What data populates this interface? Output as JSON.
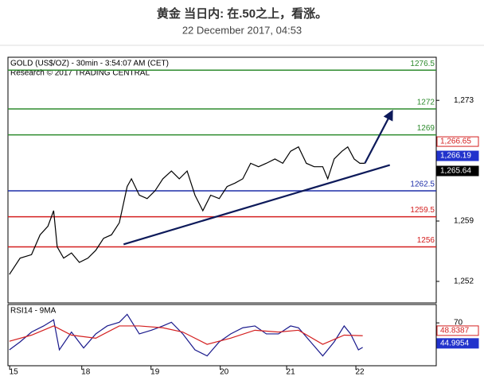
{
  "header": {
    "title": "黄金 当日内: 在.50之上，看涨。",
    "subtitle": "22 December 2017, 04:53"
  },
  "chart_data": [
    {
      "type": "line",
      "title": "GOLD (US$/OZ) - 30min - 3:54:07 AM (CET)",
      "subtitle": "Research © 2017 TRADING CENTRAL",
      "xlim": [
        0,
        6
      ],
      "ylim": [
        1249.5,
        1278.0
      ],
      "yticks": [
        {
          "value": 1273,
          "label": "1,273"
        },
        {
          "value": 1259,
          "label": "1,259"
        },
        {
          "value": 1252,
          "label": "1,252"
        }
      ],
      "series": [
        {
          "color": "#000000",
          "x": [
            0.02,
            0.17,
            0.33,
            0.45,
            0.56,
            0.64,
            0.69,
            0.78,
            0.89,
            1.0,
            1.12,
            1.23,
            1.34,
            1.45,
            1.56,
            1.67,
            1.73,
            1.84,
            1.95,
            2.06,
            2.17,
            2.29,
            2.4,
            2.51,
            2.62,
            2.73,
            2.84,
            2.96,
            3.07,
            3.18,
            3.29,
            3.4,
            3.51,
            3.62,
            3.74,
            3.85,
            3.96,
            4.07,
            4.18,
            4.29,
            4.41,
            4.48,
            4.57,
            4.68,
            4.76,
            4.85,
            4.93,
            5.0
          ],
          "values": [
            1252.8,
            1254.7,
            1255.1,
            1257.4,
            1258.4,
            1260.2,
            1256.0,
            1254.7,
            1255.3,
            1254.2,
            1254.7,
            1255.6,
            1257.0,
            1257.4,
            1258.8,
            1263.0,
            1263.9,
            1262.0,
            1261.6,
            1262.5,
            1263.9,
            1264.8,
            1263.9,
            1264.8,
            1262.0,
            1260.2,
            1262.0,
            1261.6,
            1263.0,
            1263.4,
            1263.9,
            1265.7,
            1265.3,
            1265.7,
            1266.2,
            1265.7,
            1267.1,
            1267.6,
            1265.7,
            1265.3,
            1265.3,
            1263.9,
            1266.2,
            1267.1,
            1267.6,
            1266.2,
            1265.7,
            1265.7
          ]
        }
      ],
      "levels": [
        {
          "value": 1276.5,
          "color": "#2e8b2e"
        },
        {
          "value": 1272,
          "color": "#2e8b2e"
        },
        {
          "value": 1269,
          "color": "#2e8b2e"
        },
        {
          "value": 1262.5,
          "color": "#1f2fa8"
        },
        {
          "value": 1259.5,
          "color": "#d42020"
        },
        {
          "value": 1256,
          "color": "#d42020"
        }
      ],
      "trend_line": {
        "color": "#0d1a5a",
        "x": [
          1.62,
          5.35
        ],
        "values": [
          1256.3,
          1265.5
        ]
      },
      "arrow": {
        "color": "#0d1a5a",
        "x": [
          5.0,
          5.38
        ],
        "values": [
          1265.7,
          1271.7
        ]
      },
      "price_tags": [
        {
          "value": 1266.65,
          "label": "1,266.65",
          "color": "#d42020",
          "fill": "#ffffff"
        },
        {
          "value": 1266.19,
          "label": "1,266.19",
          "color": "#ffffff",
          "fill": "#2233cc"
        },
        {
          "value": 1265.64,
          "label": "1,265.64",
          "color": "#ffffff",
          "fill": "#000000"
        }
      ],
      "xticks": [
        {
          "value": 0.08,
          "label": "15"
        },
        {
          "value": 1.09,
          "label": "18"
        },
        {
          "value": 2.06,
          "label": "19"
        },
        {
          "value": 3.03,
          "label": "20"
        },
        {
          "value": 3.96,
          "label": "21"
        },
        {
          "value": 4.93,
          "label": "22"
        }
      ]
    },
    {
      "type": "line",
      "title": "RSI14 - 9MA",
      "xlim": [
        0,
        6
      ],
      "ylim": [
        0,
        100
      ],
      "yticks": [
        70
      ],
      "series": [
        {
          "color": "#1a1a8c",
          "x": [
            0.02,
            0.17,
            0.33,
            0.5,
            0.64,
            0.72,
            0.89,
            1.06,
            1.23,
            1.39,
            1.56,
            1.67,
            1.84,
            2.01,
            2.17,
            2.29,
            2.45,
            2.62,
            2.79,
            2.96,
            3.12,
            3.29,
            3.46,
            3.62,
            3.79,
            3.96,
            4.07,
            4.24,
            4.41,
            4.57,
            4.71,
            4.8,
            4.91,
            4.97
          ],
          "values": [
            26,
            39,
            55,
            65,
            75,
            26,
            55,
            29,
            52,
            65,
            71,
            84,
            52,
            58,
            65,
            71,
            52,
            26,
            16,
            39,
            52,
            62,
            65,
            52,
            52,
            65,
            62,
            39,
            16,
            39,
            65,
            52,
            26,
            30
          ]
        },
        {
          "color": "#d42020",
          "x": [
            0.02,
            0.33,
            0.64,
            0.89,
            1.23,
            1.56,
            1.84,
            2.17,
            2.45,
            2.79,
            3.12,
            3.46,
            3.79,
            4.07,
            4.41,
            4.71,
            4.97
          ],
          "values": [
            40,
            50,
            65,
            50,
            45,
            65,
            65,
            62,
            55,
            35,
            45,
            58,
            55,
            58,
            35,
            50,
            49
          ]
        }
      ],
      "price_tags": [
        {
          "value": 48.8387,
          "color": "#d42020",
          "fill": "#ffffff"
        },
        {
          "value": 44.9954,
          "color": "#ffffff",
          "fill": "#2233cc"
        }
      ]
    }
  ]
}
